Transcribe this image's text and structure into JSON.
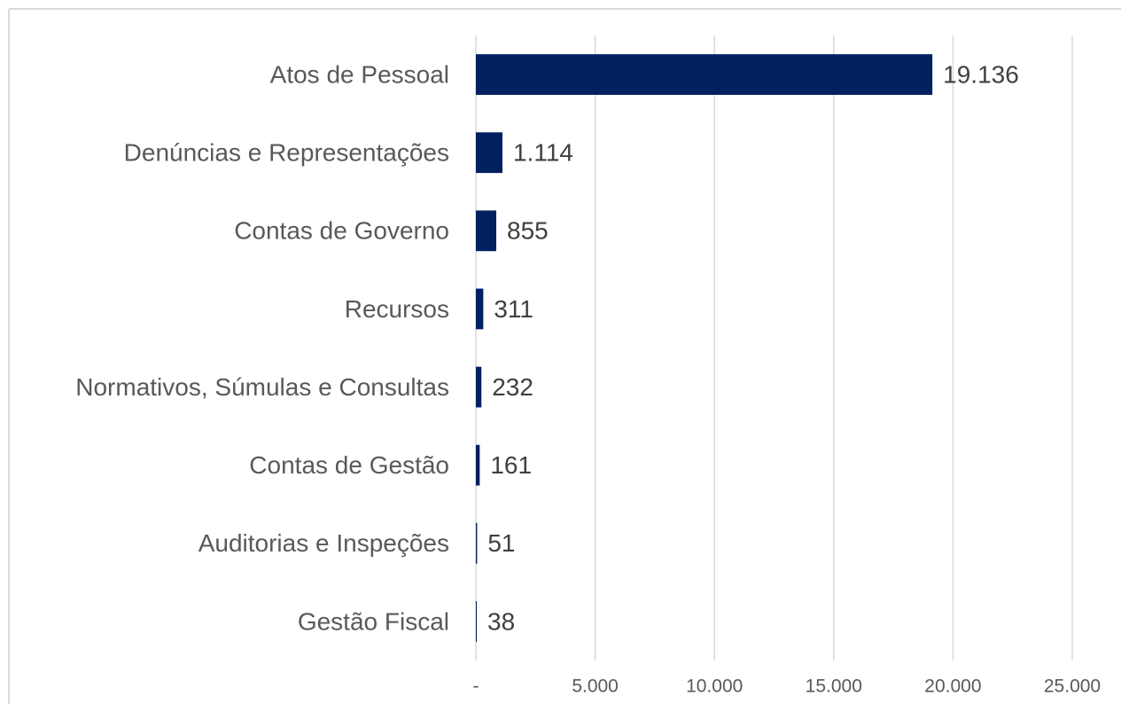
{
  "chart_data": {
    "type": "bar",
    "orientation": "horizontal",
    "categories": [
      "Atos de Pessoal",
      "Denúncias e Representações",
      "Contas de Governo",
      "Recursos",
      "Normativos, Súmulas e Consultas",
      "Contas de Gestão",
      "Auditorias e Inspeções",
      "Gestão Fiscal"
    ],
    "values": [
      19136,
      1114,
      855,
      311,
      232,
      161,
      51,
      38
    ],
    "value_labels": [
      "19.136",
      "1.114",
      "855",
      "311",
      "232",
      "161",
      "51",
      "38"
    ],
    "color": "#002060",
    "xlim": [
      0,
      25000
    ],
    "xticks": [
      {
        "value": 0,
        "label": "-"
      },
      {
        "value": 5000,
        "label": "5.000"
      },
      {
        "value": 10000,
        "label": "10.000"
      },
      {
        "value": 15000,
        "label": "15.000"
      },
      {
        "value": 20000,
        "label": "20.000"
      },
      {
        "value": 25000,
        "label": "25.000"
      }
    ],
    "grid": true
  }
}
